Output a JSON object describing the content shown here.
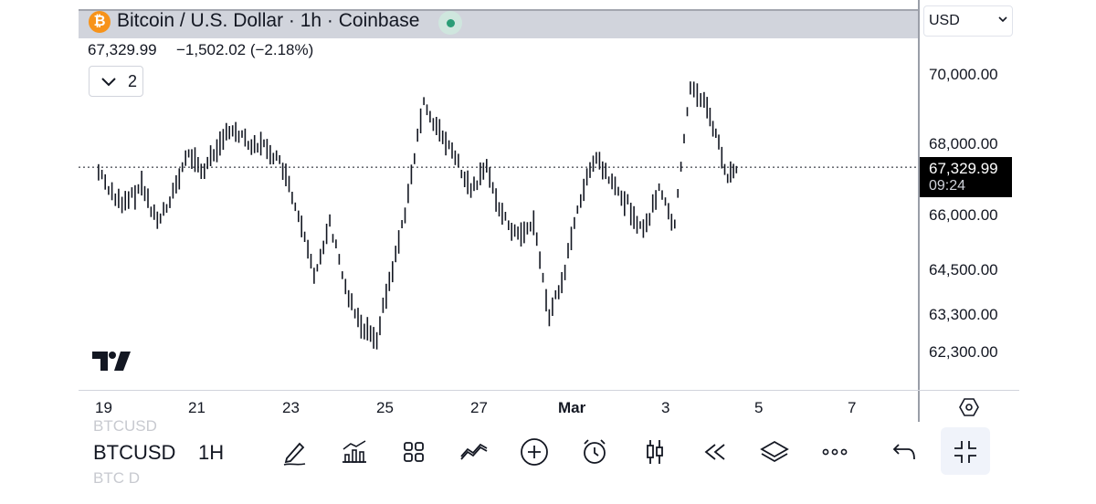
{
  "header": {
    "title": "Bitcoin / U.S. Dollar · 1h · Coinbase",
    "logo_glyph": "₿",
    "status": "live",
    "accent_color": "#2a9d76"
  },
  "ohlc": {
    "price": "67,329.99",
    "change": "−1,502.02 (−2.18%)"
  },
  "indicators_toggle": {
    "count": "2"
  },
  "currency": {
    "selected": "USD"
  },
  "price_axis": {
    "ticks": [
      "70,000.00",
      "68,000.00",
      "66,000.00",
      "64,500.00",
      "63,300.00",
      "62,300.00"
    ],
    "current_price": "67,329.99",
    "countdown": "09:24"
  },
  "time_axis": {
    "ticks": [
      "19",
      "21",
      "23",
      "25",
      "27",
      "Mar",
      "3",
      "5",
      "7"
    ]
  },
  "chart_data": {
    "type": "candlestick",
    "symbol": "BTCUSD",
    "interval": "1h",
    "current_price": 67329.99,
    "scale": "log",
    "x_ticks": [
      "19",
      "21",
      "23",
      "25",
      "27",
      "Mar",
      "3",
      "5",
      "7"
    ],
    "y_ticks": [
      70000,
      68000,
      66000,
      64500,
      63300,
      62300
    ],
    "ylim": [
      61800,
      71200
    ],
    "path": [
      [
        "Feb 19",
        67200
      ],
      [
        "Feb 19",
        66200
      ],
      [
        "Feb 20",
        66800
      ],
      [
        "Feb 20",
        65800
      ],
      [
        "Feb 20",
        66600
      ],
      [
        "Feb 21",
        67700
      ],
      [
        "Feb 21",
        67200
      ],
      [
        "Feb 21",
        68100
      ],
      [
        "Feb 22",
        68400
      ],
      [
        "Feb 22",
        68000
      ],
      [
        "Feb 22",
        67900
      ],
      [
        "Feb 23",
        67300
      ],
      [
        "Feb 23",
        65900
      ],
      [
        "Feb 23",
        64300
      ],
      [
        "Feb 24",
        65800
      ],
      [
        "Feb 24",
        64000
      ],
      [
        "Feb 24",
        63000
      ],
      [
        "Feb 25",
        62700
      ],
      [
        "Feb 25",
        64500
      ],
      [
        "Feb 25",
        66500
      ],
      [
        "Feb 26",
        69200
      ],
      [
        "Feb 26",
        68300
      ],
      [
        "Feb 26",
        67600
      ],
      [
        "Feb 27",
        66600
      ],
      [
        "Feb 27",
        67300
      ],
      [
        "Feb 27",
        66000
      ],
      [
        "Feb 28",
        65400
      ],
      [
        "Feb 28",
        65800
      ],
      [
        "Feb 28",
        63200
      ],
      [
        "Feb 29",
        64500
      ],
      [
        "Feb 29",
        66500
      ],
      [
        "Feb 29",
        67600
      ],
      [
        "Mar 1",
        66800
      ],
      [
        "Mar 1",
        66300
      ],
      [
        "Mar 1",
        65500
      ],
      [
        "Mar 2",
        66700
      ],
      [
        "Mar 2",
        65700
      ],
      [
        "Mar 2",
        69700
      ],
      [
        "Mar 3",
        69200
      ],
      [
        "Mar 3",
        68300
      ],
      [
        "Mar 3",
        67000
      ],
      [
        "Mar 3",
        67329.99
      ]
    ]
  },
  "toolbar": {
    "symbol": "BTCUSD",
    "interval": "1H",
    "ghost_above": "BTCUSD",
    "ghost_below": "BTC D",
    "icons": [
      "draw-icon",
      "indicators-icon",
      "layouts-icon",
      "compare-icon",
      "add-icon",
      "alert-icon",
      "chart-type-icon",
      "replay-icon",
      "layers-icon",
      "more-icon",
      "undo-icon",
      "collapse-icon"
    ]
  }
}
